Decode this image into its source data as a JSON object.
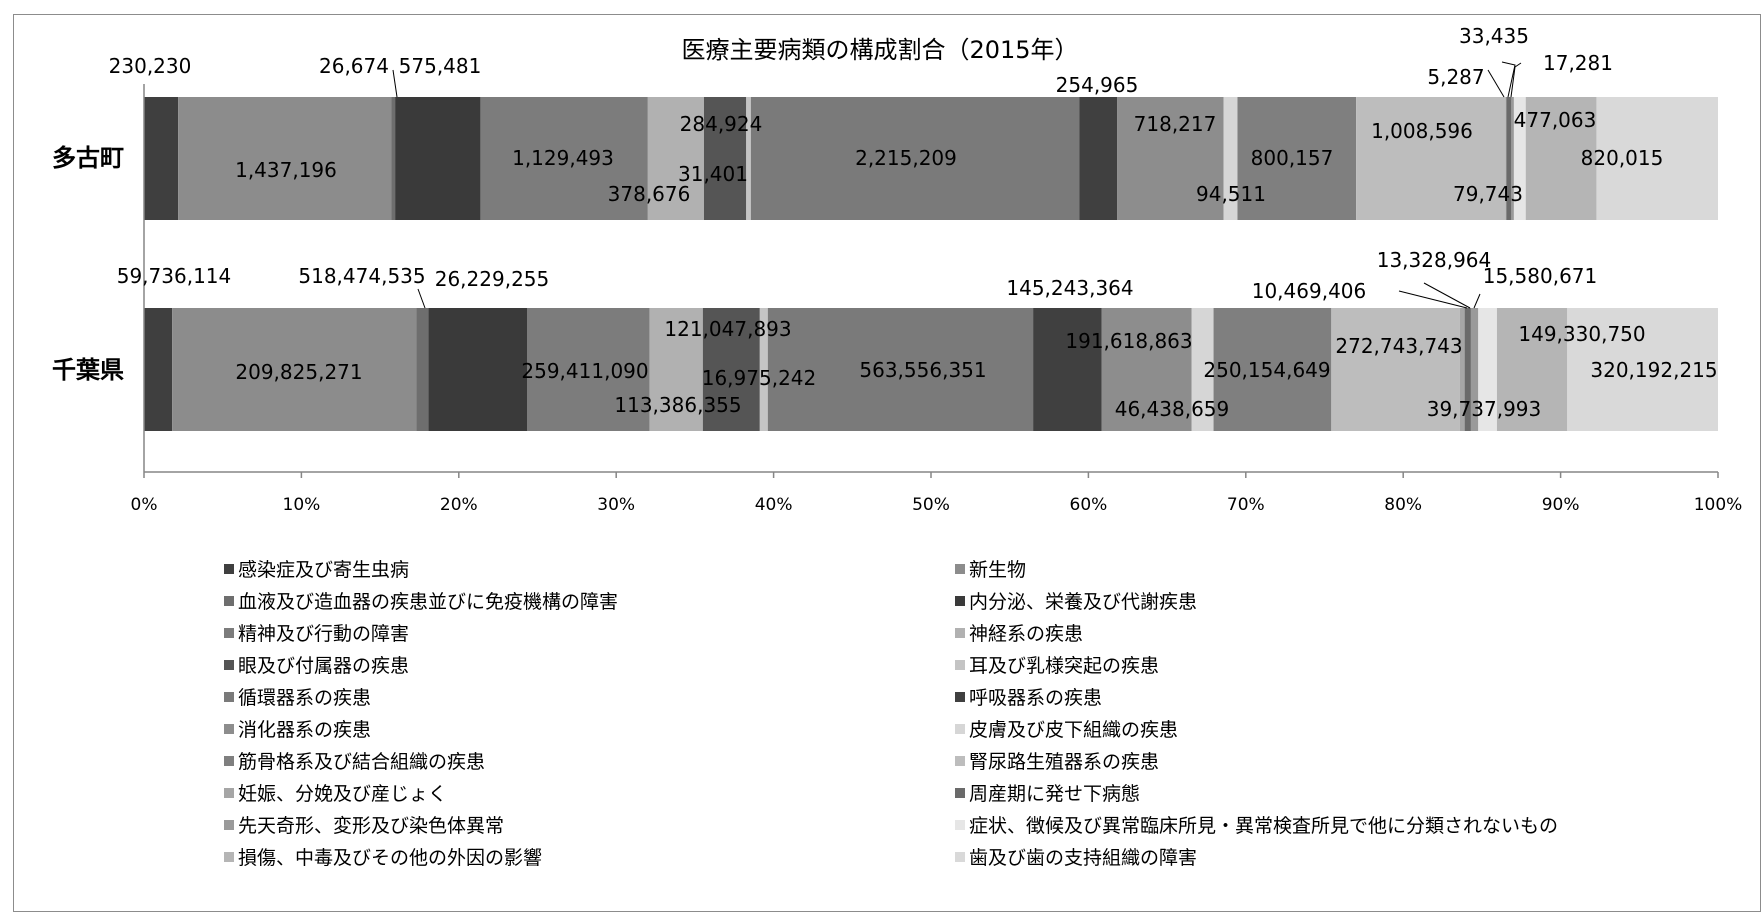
{
  "chart_data": {
    "type": "bar",
    "orientation": "horizontal",
    "stacked": "percent",
    "title": "医療主要病類の構成割合（2015年）",
    "categories": [
      "多古町",
      "千葉県"
    ],
    "xlim": [
      0,
      100
    ],
    "x_ticks": [
      "0%",
      "10%",
      "20%",
      "30%",
      "40%",
      "50%",
      "60%",
      "70%",
      "80%",
      "90%",
      "100%"
    ],
    "grid": false,
    "legend_position": "bottom",
    "series": [
      {
        "name": "感染症及び寄生虫病",
        "color": "#3f3f3f",
        "values": [
          230230,
          59736114
        ],
        "labels": [
          "230,230",
          "59,736,114"
        ]
      },
      {
        "name": "新生物",
        "color": "#8c8c8c",
        "values": [
          1437196,
          518474535
        ],
        "labels": [
          "1,437,196",
          "518,474,535"
        ]
      },
      {
        "name": "血液及び造血器の疾患並びに免疫機構の障害",
        "color": "#6e6e6e",
        "values": [
          26674,
          26229255
        ],
        "labels": [
          "26,674",
          "26,229,255"
        ]
      },
      {
        "name": "内分泌、栄養及び代謝疾患",
        "color": "#3a3a3a",
        "values": [
          575481,
          209825271
        ],
        "labels": [
          "575,481",
          "209,825,271"
        ]
      },
      {
        "name": "精神及び行動の障害",
        "color": "#7c7c7c",
        "values": [
          1129493,
          259411090
        ],
        "labels": [
          "1,129,493",
          "259,411,090"
        ]
      },
      {
        "name": "神経系の疾患",
        "color": "#b1b1b1",
        "values": [
          378676,
          113386355
        ],
        "labels": [
          "378,676",
          "113,386,355"
        ]
      },
      {
        "name": "眼及び付属器の疾患",
        "color": "#555555",
        "values": [
          284924,
          121047893
        ],
        "labels": [
          "284,924",
          "121,047,893"
        ]
      },
      {
        "name": "耳及び乳様突起の疾患",
        "color": "#c4c4c4",
        "values": [
          31401,
          16975242
        ],
        "labels": [
          "31,401",
          "16,975,242"
        ]
      },
      {
        "name": "循環器系の疾患",
        "color": "#7a7a7a",
        "values": [
          2215209,
          563556351
        ],
        "labels": [
          "2,215,209",
          "563,556,351"
        ]
      },
      {
        "name": "呼吸器系の疾患",
        "color": "#404040",
        "values": [
          254965,
          145243364
        ],
        "labels": [
          "254,965",
          "145,243,364"
        ]
      },
      {
        "name": "消化器系の疾患",
        "color": "#8d8d8d",
        "values": [
          718217,
          191618863
        ],
        "labels": [
          "718,217",
          "191,618,863"
        ]
      },
      {
        "name": "皮膚及び皮下組織の疾患",
        "color": "#d6d6d6",
        "values": [
          94511,
          46438659
        ],
        "labels": [
          "94,511",
          "46,438,659"
        ]
      },
      {
        "name": "筋骨格系及び結合組織の疾患",
        "color": "#7f7f7f",
        "values": [
          800157,
          250154649
        ],
        "labels": [
          "800,157",
          "250,154,649"
        ]
      },
      {
        "name": "腎尿路生殖器系の疾患",
        "color": "#bdbdbd",
        "values": [
          1008596,
          272743743
        ],
        "labels": [
          "1,008,596",
          "272,743,743"
        ]
      },
      {
        "name": "妊娠、分娩及び産じょく",
        "color": "#a6a6a6",
        "values": [
          5287,
          10469406
        ],
        "labels": [
          "5,287",
          "10,469,406"
        ]
      },
      {
        "name": "周産期に発せ下病態",
        "color": "#6a6a6a",
        "values": [
          33435,
          13328964
        ],
        "labels": [
          "33,435",
          "13,328,964"
        ]
      },
      {
        "name": "先天奇形、変形及び染色体異常",
        "color": "#9a9a9a",
        "values": [
          17281,
          15580671
        ],
        "labels": [
          "17,281",
          "15,580,671"
        ]
      },
      {
        "name": "症状、徴候及び異常臨床所見・異常検査所見で他に分類されないもの",
        "color": "#e6e6e6",
        "values": [
          79743,
          39737993
        ],
        "labels": [
          "79,743",
          "39,737,993"
        ]
      },
      {
        "name": "損傷、中毒及びその他の外因の影響",
        "color": "#b5b5b5",
        "values": [
          477063,
          149330750
        ],
        "labels": [
          "477,063",
          "149,330,750"
        ]
      },
      {
        "name": "歯及び歯の支持組織の障害",
        "color": "#d9d9d9",
        "values": [
          820015,
          320192215
        ],
        "labels": [
          "820,015",
          "320,192,215"
        ]
      }
    ]
  }
}
